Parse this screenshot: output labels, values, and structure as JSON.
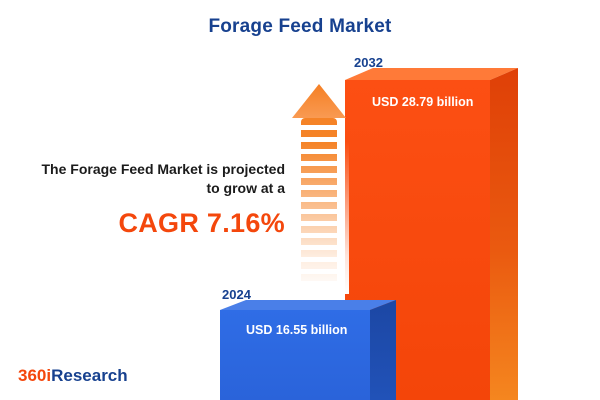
{
  "title": "Forage Feed Market",
  "chart_data": {
    "type": "bar",
    "title": "Forage Feed Market",
    "categories": [
      "2024",
      "2032"
    ],
    "values": [
      16.55,
      28.79
    ],
    "unit": "USD billion",
    "bar_labels": [
      "USD 16.55 billion",
      "USD 28.79 billion"
    ],
    "series_colors": [
      "#2D6AE3",
      "#F94B11"
    ],
    "cagr_percent": 7.16,
    "legend_position": "none",
    "grid": false
  },
  "annotation": {
    "line1": "The Forage Feed Market is projected",
    "line2": "to grow at a",
    "cagr_label": "CAGR 7.16%"
  },
  "logo": {
    "prefix": "360i",
    "suffix": "Research"
  },
  "colors": {
    "navy": "#17418F",
    "orange_accent": "#F4470C",
    "bar_blue": "#2D6AE3",
    "bar_orange": "#F94B11"
  }
}
